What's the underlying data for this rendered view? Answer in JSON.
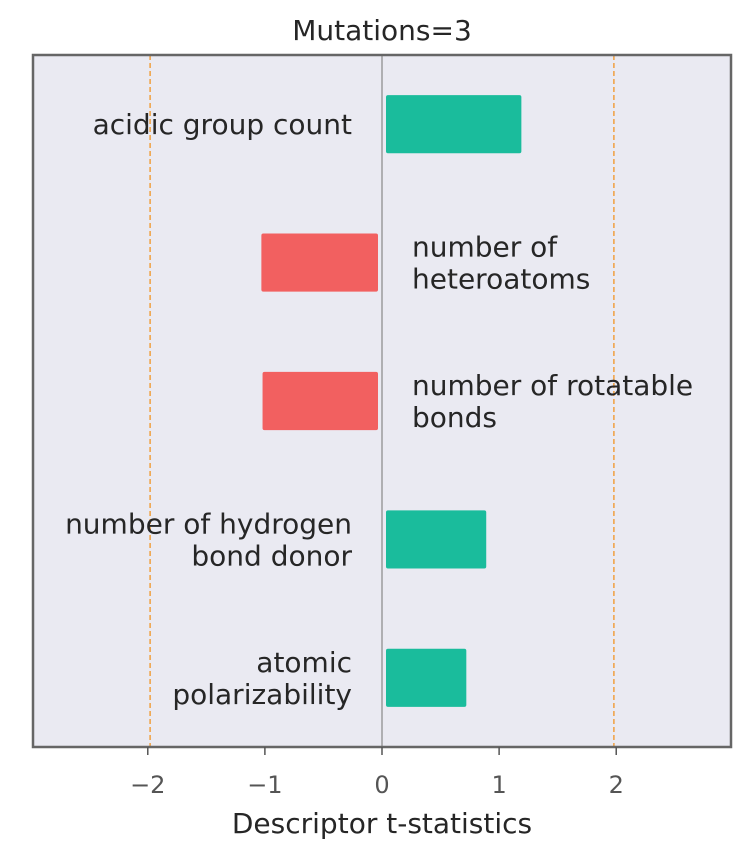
{
  "chart_data": {
    "type": "bar",
    "orientation": "horizontal",
    "title": "Mutations=3",
    "xlabel": "Descriptor t-statistics",
    "ylabel": "",
    "xlim": [
      -2.98,
      2.98
    ],
    "xticks": [
      -2,
      -1,
      0,
      1,
      2
    ],
    "xtick_labels": [
      "−2",
      "−1",
      "0",
      "1",
      "2"
    ],
    "reference_lines": [
      -1.98,
      1.98
    ],
    "grid": false,
    "categories": [
      [
        "acidic group count"
      ],
      [
        "number of",
        "heteroatoms"
      ],
      [
        "number of rotatable",
        "bonds"
      ],
      [
        "number of hydrogen",
        "bond donor"
      ],
      [
        "atomic",
        "polarizability"
      ]
    ],
    "values": [
      1.19,
      -1.03,
      -1.02,
      0.89,
      0.72
    ],
    "colors": {
      "positive": "#1abc9c",
      "negative": "#f26060",
      "reference_line": "#f0a040",
      "background": "#eaeaf2"
    }
  }
}
